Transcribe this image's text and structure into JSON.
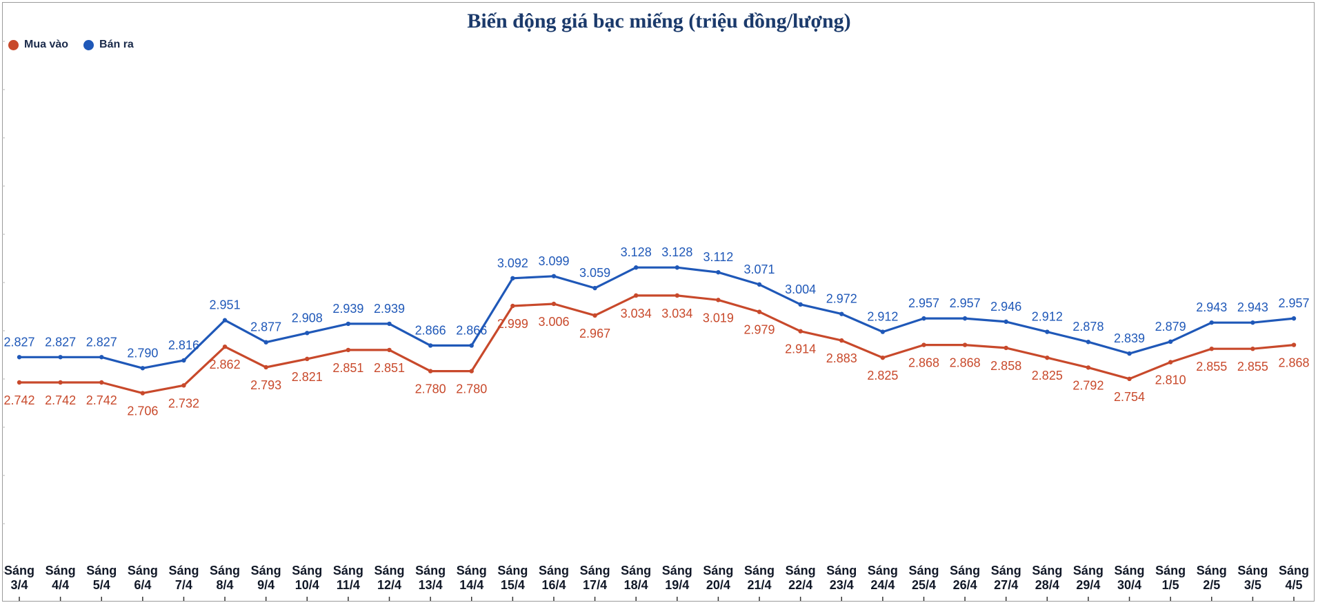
{
  "colors": {
    "buy": "#c8492b",
    "sell": "#1f58b8",
    "title": "#1b3a6b",
    "axis_text": "#111827"
  },
  "chart_data": {
    "type": "line",
    "title": "Biến động giá bạc miếng (triệu đồng/lượng)",
    "xlabel": "",
    "ylabel": "",
    "grid": false,
    "legend_position": "top-left",
    "categories": [
      [
        "Sáng",
        "3/4"
      ],
      [
        "Sáng",
        "4/4"
      ],
      [
        "Sáng",
        "5/4"
      ],
      [
        "Sáng",
        "6/4"
      ],
      [
        "Sáng",
        "7/4"
      ],
      [
        "Sáng",
        "8/4"
      ],
      [
        "Sáng",
        "9/4"
      ],
      [
        "Sáng",
        "10/4"
      ],
      [
        "Sáng",
        "11/4"
      ],
      [
        "Sáng",
        "12/4"
      ],
      [
        "Sáng",
        "13/4"
      ],
      [
        "Sáng",
        "14/4"
      ],
      [
        "Sáng",
        "15/4"
      ],
      [
        "Sáng",
        "16/4"
      ],
      [
        "Sáng",
        "17/4"
      ],
      [
        "Sáng",
        "18/4"
      ],
      [
        "Sáng",
        "19/4"
      ],
      [
        "Sáng",
        "20/4"
      ],
      [
        "Sáng",
        "21/4"
      ],
      [
        "Sáng",
        "22/4"
      ],
      [
        "Sáng",
        "23/4"
      ],
      [
        "Sáng",
        "24/4"
      ],
      [
        "Sáng",
        "25/4"
      ],
      [
        "Sáng",
        "26/4"
      ],
      [
        "Sáng",
        "27/4"
      ],
      [
        "Sáng",
        "28/4"
      ],
      [
        "Sáng",
        "29/4"
      ],
      [
        "Sáng",
        "30/4"
      ],
      [
        "Sáng",
        "1/5"
      ],
      [
        "Sáng",
        "2/5"
      ],
      [
        "Sáng",
        "3/5"
      ],
      [
        "Sáng",
        "4/5"
      ]
    ],
    "series": [
      {
        "name": "Mua vào",
        "color_key": "buy",
        "label_position": "below",
        "values": [
          2.742,
          2.742,
          2.742,
          2.706,
          2.732,
          2.862,
          2.793,
          2.821,
          2.851,
          2.851,
          2.78,
          2.78,
          2.999,
          3.006,
          2.967,
          3.034,
          3.034,
          3.019,
          2.979,
          2.914,
          2.883,
          2.825,
          2.868,
          2.868,
          2.858,
          2.825,
          2.792,
          2.754,
          2.81,
          2.855,
          2.855,
          2.868
        ],
        "labels": [
          "2.742",
          "2.742",
          "2.742",
          "2.706",
          "2.732",
          "2.862",
          "2.793",
          "2.821",
          "2.851",
          "2.851",
          "2.780",
          "2.780",
          "2.999",
          "3.006",
          "2.967",
          "3.034",
          "3.034",
          "3.019",
          "2.979",
          "2.914",
          "2.883",
          "2.825",
          "2.868",
          "2.868",
          "2.858",
          "2.825",
          "2.792",
          "2.754",
          "2.810",
          "2.855",
          "2.855",
          "2.868"
        ]
      },
      {
        "name": "Bán ra",
        "color_key": "sell",
        "label_position": "above",
        "values": [
          2.827,
          2.827,
          2.827,
          2.79,
          2.816,
          2.951,
          2.877,
          2.908,
          2.939,
          2.939,
          2.866,
          2.866,
          3.092,
          3.099,
          3.059,
          3.128,
          3.128,
          3.112,
          3.071,
          3.004,
          2.972,
          2.912,
          2.957,
          2.957,
          2.946,
          2.912,
          2.878,
          2.839,
          2.879,
          2.943,
          2.943,
          2.957
        ],
        "labels": [
          "2.827",
          "2.827",
          "2.827",
          "2.790",
          "2.816",
          "2.951",
          "2.877",
          "2.908",
          "2.939",
          "2.939",
          "2.866",
          "2.866",
          "3.092",
          "3.099",
          "3.059",
          "3.128",
          "3.128",
          "3.112",
          "3.071",
          "3.004",
          "2.972",
          "2.912",
          "2.957",
          "2.957",
          "2.946",
          "2.912",
          "2.878",
          "2.839",
          "2.879",
          "2.943",
          "2.943",
          "2.957"
        ]
      }
    ]
  }
}
